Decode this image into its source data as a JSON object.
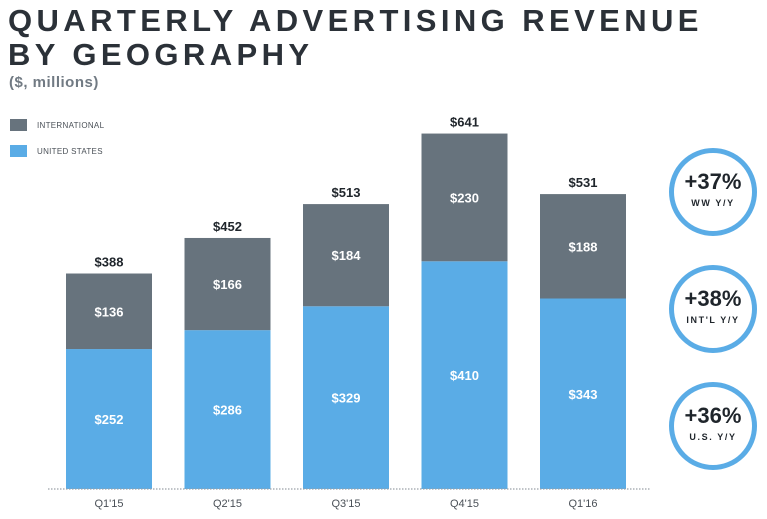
{
  "chart_data": {
    "type": "bar",
    "stacked": true,
    "title_line1": "QUARTERLY ADVERTISING REVENUE",
    "title_line2": "BY GEOGRAPHY",
    "subtitle": "($, millions)",
    "categories": [
      "Q1'15",
      "Q2'15",
      "Q3'15",
      "Q4'15",
      "Q1'16"
    ],
    "series": [
      {
        "name": "UNITED STATES",
        "color": "#5aace6",
        "values": [
          252,
          286,
          329,
          410,
          343
        ]
      },
      {
        "name": "INTERNATIONAL",
        "color": "#67737d",
        "values": [
          136,
          166,
          184,
          230,
          188
        ]
      }
    ],
    "totals": [
      388,
      452,
      513,
      641,
      531
    ],
    "value_prefix": "$",
    "ylim": [
      0,
      641
    ],
    "legend": [
      {
        "name": "INTERNATIONAL",
        "color": "#67737d"
      },
      {
        "name": "UNITED STATES",
        "color": "#5aace6"
      }
    ]
  },
  "callouts": [
    {
      "value": "+37%",
      "label": "WW Y/Y"
    },
    {
      "value": "+38%",
      "label": "INT'L Y/Y"
    },
    {
      "value": "+36%",
      "label": "U.S. Y/Y"
    }
  ],
  "colors": {
    "axis": "#9aa1a7",
    "label_on_bar": "#ffffff",
    "label_dark": "#1f252b",
    "tick": "#4a5057"
  }
}
